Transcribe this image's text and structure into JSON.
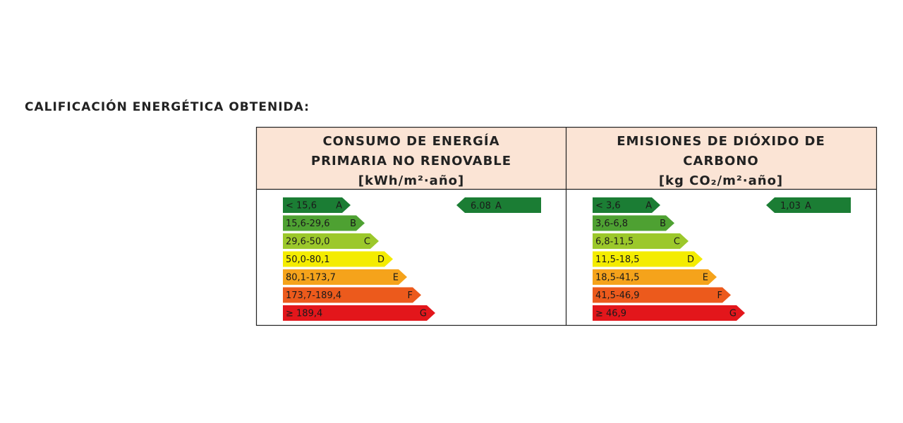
{
  "title": "CALIFICACIÓN ENERGÉTICA OBTENIDA:",
  "columns": [
    {
      "header": [
        "CONSUMO DE ENERGÍA",
        "PRIMARIA NO RENOVABLE",
        "[kWh/m²·año]"
      ],
      "scale": [
        {
          "range": "< 15,6",
          "letter": "A"
        },
        {
          "range": "15,6-29,6",
          "letter": "B"
        },
        {
          "range": "29,6-50,0",
          "letter": "C"
        },
        {
          "range": "50,0-80,1",
          "letter": "D"
        },
        {
          "range": "80,1-173,7",
          "letter": "E"
        },
        {
          "range": "173,7-189,4",
          "letter": "F"
        },
        {
          "range": "≥ 189,4",
          "letter": "G"
        }
      ],
      "result": {
        "value": "6.08",
        "letter": "A"
      }
    },
    {
      "header": [
        "EMISIONES DE DIÓXIDO DE",
        "CARBONO",
        "[kg CO₂/m²·año]"
      ],
      "scale": [
        {
          "range": "< 3,6",
          "letter": "A"
        },
        {
          "range": "3,6-6,8",
          "letter": "B"
        },
        {
          "range": "6,8-11,5",
          "letter": "C"
        },
        {
          "range": "11,5-18,5",
          "letter": "D"
        },
        {
          "range": "18,5-41,5",
          "letter": "E"
        },
        {
          "range": "41,5-46,9",
          "letter": "F"
        },
        {
          "range": "≥ 46,9",
          "letter": "G"
        }
      ],
      "result": {
        "value": "1,03",
        "letter": "A"
      }
    }
  ]
}
